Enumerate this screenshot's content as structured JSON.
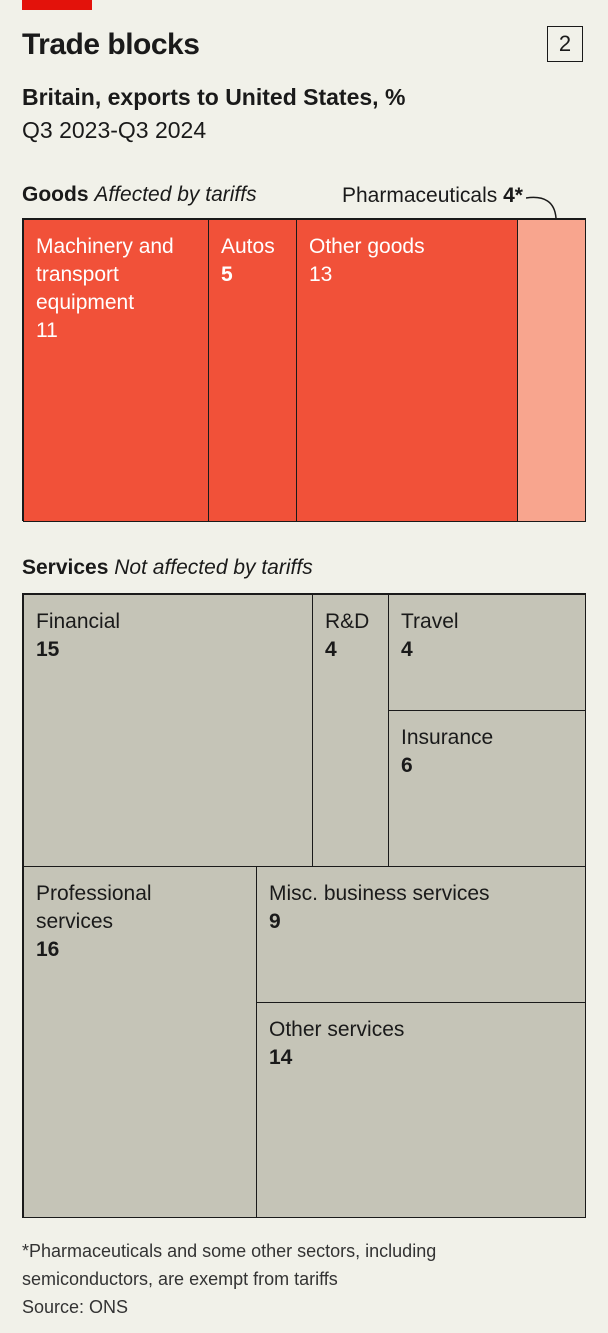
{
  "header": {
    "title": "Trade blocks",
    "chart_number": "2",
    "subtitle": "Britain, exports to United States, %",
    "period": "Q3 2023-Q3 2024"
  },
  "goods": {
    "label": "Goods",
    "note": "Affected by tariffs",
    "pharma_callout_label": "Pharmaceuticals",
    "pharma_callout_value": "4*"
  },
  "services": {
    "label": "Services",
    "note": "Not affected by tariffs"
  },
  "footnote": {
    "line1": "*Pharmaceuticals and some other sectors, including",
    "line2": "semiconductors, are exempt from tariffs",
    "source": "Source: ONS"
  },
  "chart_data": {
    "type": "treemap",
    "title": "Trade blocks",
    "subtitle": "Britain, exports to United States, %",
    "unit": "%",
    "groups": [
      {
        "name": "Goods",
        "note": "Affected by tariffs",
        "items": [
          {
            "name": "Machinery and transport equipment",
            "value": 11
          },
          {
            "name": "Autos",
            "value": 5
          },
          {
            "name": "Other goods",
            "value": 13
          },
          {
            "name": "Pharmaceuticals",
            "value": 4,
            "flag": "*"
          }
        ]
      },
      {
        "name": "Services",
        "note": "Not affected by tariffs",
        "items": [
          {
            "name": "Financial",
            "value": 15
          },
          {
            "name": "R&D",
            "value": 4
          },
          {
            "name": "Travel",
            "value": 4
          },
          {
            "name": "Insurance",
            "value": 6
          },
          {
            "name": "Professional services",
            "value": 16
          },
          {
            "name": "Misc. business services",
            "value": 9
          },
          {
            "name": "Other services",
            "value": 14
          }
        ]
      }
    ]
  },
  "colors": {
    "brand_red": "#e3120b",
    "goods_fill": "#f15139",
    "pharma_fill": "#f8a58e",
    "services_fill": "#c5c4b7",
    "background": "#f1f1e9"
  }
}
